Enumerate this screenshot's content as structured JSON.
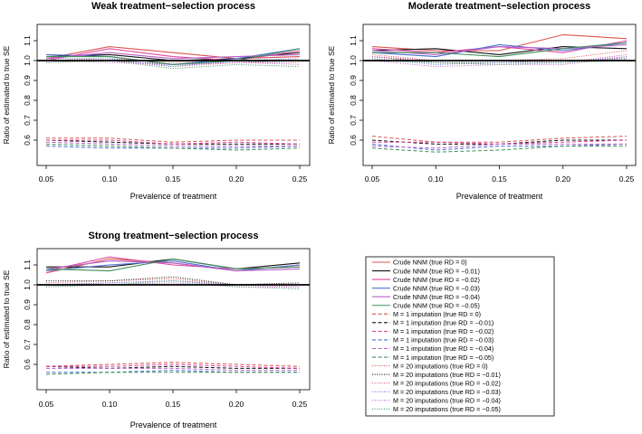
{
  "figure": {
    "legend": [
      {
        "label": "Crude NNM (true RD = 0)",
        "color": "#d9534f",
        "dash": "solid"
      },
      {
        "label": "Crude NNM (true RD = −0.01)",
        "color": "#111111",
        "dash": "solid"
      },
      {
        "label": "Crude NNM (true RD = −0.02)",
        "color": "#e0479e",
        "dash": "solid"
      },
      {
        "label": "Crude NNM (true RD = −0.03)",
        "color": "#4a6fd6",
        "dash": "solid"
      },
      {
        "label": "Crude NNM (true RD = −0.04)",
        "color": "#b660c8",
        "dash": "solid"
      },
      {
        "label": "Crude NNM (true RD = −0.05)",
        "color": "#3f8f5a",
        "dash": "solid"
      },
      {
        "label": "M = 1 imputation (true RD = 0)",
        "color": "#d9534f",
        "dash": "dashed"
      },
      {
        "label": "M = 1 imputation (true RD = −0.01)",
        "color": "#111111",
        "dash": "dashed"
      },
      {
        "label": "M = 1 imputation (true RD = −0.02)",
        "color": "#e0479e",
        "dash": "dashed"
      },
      {
        "label": "M = 1 imputation (true RD = −0.03)",
        "color": "#4a6fd6",
        "dash": "dashed"
      },
      {
        "label": "M = 1 imputation (true RD = −0.04)",
        "color": "#b660c8",
        "dash": "dashed"
      },
      {
        "label": "M = 1 imputation (true RD = −0.05)",
        "color": "#3f8f5a",
        "dash": "dashed"
      },
      {
        "label": "M = 20 imputations (true RD = 0)",
        "color": "#d9534f",
        "dash": "dotted"
      },
      {
        "label": "M = 20 imputations (true RD = −0.01)",
        "color": "#111111",
        "dash": "dotted"
      },
      {
        "label": "M = 20 imputations (true RD = −0.02)",
        "color": "#e0479e",
        "dash": "dotted"
      },
      {
        "label": "M = 20 imputations (true RD = −0.03)",
        "color": "#4a6fd6",
        "dash": "dotted"
      },
      {
        "label": "M = 20 imputations (true RD = −0.04)",
        "color": "#b660c8",
        "dash": "dotted"
      },
      {
        "label": "M = 20 imputations (true RD = −0.05)",
        "color": "#3f8f5a",
        "dash": "dotted"
      }
    ]
  },
  "chart_data": [
    {
      "type": "line",
      "title": "Weak treatment−selection process",
      "xlabel": "Prevalence of treatment",
      "ylabel": "Ratio of estimated to true SE",
      "x": [
        0.05,
        0.1,
        0.15,
        0.2,
        0.25
      ],
      "x_tick_labels": [
        "0.05",
        "0.10",
        "0.15",
        "0.20",
        "0.25"
      ],
      "ylim": [
        0.5,
        1.15
      ],
      "y_ticks": [
        0.6,
        0.7,
        0.8,
        0.9,
        1.0,
        1.1
      ],
      "y_tick_labels": [
        "0.6",
        "0.7",
        "0.8",
        "0.9",
        "1.0",
        "1.1"
      ],
      "reference_line": 1.0,
      "series": [
        {
          "name": "Crude NNM (true RD = 0)",
          "values": [
            1.01,
            1.07,
            1.04,
            1.01,
            1.02
          ]
        },
        {
          "name": "Crude NNM (true RD = −0.01)",
          "values": [
            1.02,
            1.03,
            1.0,
            1.01,
            1.04
          ]
        },
        {
          "name": "Crude NNM (true RD = −0.02)",
          "values": [
            1.0,
            1.06,
            1.02,
            1.0,
            1.05
          ]
        },
        {
          "name": "Crude NNM (true RD = −0.03)",
          "values": [
            1.03,
            1.02,
            0.98,
            1.01,
            1.06
          ]
        },
        {
          "name": "Crude NNM (true RD = −0.04)",
          "values": [
            1.01,
            1.04,
            1.01,
            1.02,
            1.03
          ]
        },
        {
          "name": "Crude NNM (true RD = −0.05)",
          "values": [
            1.02,
            1.02,
            0.98,
            1.0,
            1.06
          ]
        },
        {
          "name": "M = 1 imputation (true RD = 0)",
          "values": [
            0.61,
            0.61,
            0.59,
            0.6,
            0.6
          ]
        },
        {
          "name": "M = 1 imputation (true RD = −0.01)",
          "values": [
            0.6,
            0.59,
            0.58,
            0.58,
            0.58
          ]
        },
        {
          "name": "M = 1 imputation (true RD = −0.02)",
          "values": [
            0.6,
            0.6,
            0.58,
            0.59,
            0.58
          ]
        },
        {
          "name": "M = 1 imputation (true RD = −0.03)",
          "values": [
            0.57,
            0.56,
            0.56,
            0.56,
            0.57
          ]
        },
        {
          "name": "M = 1 imputation (true RD = −0.04)",
          "values": [
            0.59,
            0.58,
            0.57,
            0.57,
            0.57
          ]
        },
        {
          "name": "M = 1 imputation (true RD = −0.05)",
          "values": [
            0.58,
            0.57,
            0.56,
            0.55,
            0.56
          ]
        },
        {
          "name": "M = 20 imputations (true RD = 0)",
          "values": [
            1.0,
            1.01,
            0.99,
            1.0,
            1.0
          ]
        },
        {
          "name": "M = 20 imputations (true RD = −0.01)",
          "values": [
            1.0,
            1.0,
            0.98,
            0.99,
            1.0
          ]
        },
        {
          "name": "M = 20 imputations (true RD = −0.02)",
          "values": [
            0.99,
            1.0,
            0.97,
            0.99,
            0.99
          ]
        },
        {
          "name": "M = 20 imputations (true RD = −0.03)",
          "values": [
            1.01,
            1.01,
            0.97,
            1.0,
            1.01
          ]
        },
        {
          "name": "M = 20 imputations (true RD = −0.04)",
          "values": [
            1.0,
            0.99,
            0.98,
            0.99,
            0.98
          ]
        },
        {
          "name": "M = 20 imputations (true RD = −0.05)",
          "values": [
            0.99,
            1.0,
            0.96,
            0.98,
            0.97
          ]
        }
      ]
    },
    {
      "type": "line",
      "title": "Moderate treatment−selection process",
      "xlabel": "Prevalence of treatment",
      "ylabel": "Ratio of estimated to true SE",
      "x": [
        0.05,
        0.1,
        0.15,
        0.2,
        0.25
      ],
      "x_tick_labels": [
        "0.05",
        "0.10",
        "0.15",
        "0.20",
        "0.25"
      ],
      "ylim": [
        0.5,
        1.15
      ],
      "y_ticks": [
        0.6,
        0.7,
        0.8,
        0.9,
        1.0,
        1.1
      ],
      "y_tick_labels": [
        "0.6",
        "0.7",
        "0.8",
        "0.9",
        "1.0",
        "1.1"
      ],
      "reference_line": 1.0,
      "series": [
        {
          "name": "Crude NNM (true RD = 0)",
          "values": [
            1.07,
            1.05,
            1.05,
            1.13,
            1.11
          ]
        },
        {
          "name": "Crude NNM (true RD = −0.01)",
          "values": [
            1.05,
            1.06,
            1.03,
            1.07,
            1.06
          ]
        },
        {
          "name": "Crude NNM (true RD = −0.02)",
          "values": [
            1.06,
            1.04,
            1.07,
            1.04,
            1.1
          ]
        },
        {
          "name": "Crude NNM (true RD = −0.03)",
          "values": [
            1.04,
            1.02,
            1.08,
            1.05,
            1.09
          ]
        },
        {
          "name": "Crude NNM (true RD = −0.04)",
          "values": [
            1.05,
            1.03,
            1.07,
            1.06,
            1.08
          ]
        },
        {
          "name": "Crude NNM (true RD = −0.05)",
          "values": [
            1.04,
            1.04,
            1.02,
            1.06,
            1.09
          ]
        },
        {
          "name": "M = 1 imputation (true RD = 0)",
          "values": [
            0.62,
            0.59,
            0.59,
            0.61,
            0.62
          ]
        },
        {
          "name": "M = 1 imputation (true RD = −0.01)",
          "values": [
            0.6,
            0.58,
            0.58,
            0.6,
            0.6
          ]
        },
        {
          "name": "M = 1 imputation (true RD = −0.02)",
          "values": [
            0.59,
            0.59,
            0.58,
            0.59,
            0.6
          ]
        },
        {
          "name": "M = 1 imputation (true RD = −0.03)",
          "values": [
            0.58,
            0.55,
            0.57,
            0.57,
            0.58
          ]
        },
        {
          "name": "M = 1 imputation (true RD = −0.04)",
          "values": [
            0.57,
            0.56,
            0.58,
            0.58,
            0.58
          ]
        },
        {
          "name": "M = 1 imputation (true RD = −0.05)",
          "values": [
            0.56,
            0.54,
            0.55,
            0.57,
            0.57
          ]
        },
        {
          "name": "M = 20 imputations (true RD = 0)",
          "values": [
            1.03,
            1.0,
            1.0,
            1.01,
            1.05
          ]
        },
        {
          "name": "M = 20 imputations (true RD = −0.01)",
          "values": [
            1.02,
            0.99,
            0.99,
            1.0,
            1.01
          ]
        },
        {
          "name": "M = 20 imputations (true RD = −0.02)",
          "values": [
            1.02,
            1.0,
            1.0,
            0.99,
            1.03
          ]
        },
        {
          "name": "M = 20 imputations (true RD = −0.03)",
          "values": [
            1.01,
            0.98,
            0.99,
            0.99,
            1.02
          ]
        },
        {
          "name": "M = 20 imputations (true RD = −0.04)",
          "values": [
            1.0,
            0.97,
            0.98,
            0.98,
            1.02
          ]
        },
        {
          "name": "M = 20 imputations (true RD = −0.05)",
          "values": [
            1.0,
            0.99,
            0.98,
            0.99,
            1.0
          ]
        }
      ]
    },
    {
      "type": "line",
      "title": "Strong treatment−selection process",
      "xlabel": "Prevalence of treatment",
      "ylabel": "Ratio of estimated to true SE",
      "x": [
        0.05,
        0.1,
        0.15,
        0.2,
        0.25
      ],
      "x_tick_labels": [
        "0.05",
        "0.10",
        "0.15",
        "0.20",
        "0.25"
      ],
      "ylim": [
        0.5,
        1.15
      ],
      "y_ticks": [
        0.6,
        0.7,
        0.8,
        0.9,
        1.0,
        1.1
      ],
      "y_tick_labels": [
        "0.6",
        "0.7",
        "0.8",
        "0.9",
        "1.0",
        "1.1"
      ],
      "reference_line": 1.0,
      "series": [
        {
          "name": "Crude NNM (true RD = 0)",
          "values": [
            1.06,
            1.13,
            1.11,
            1.07,
            1.1
          ]
        },
        {
          "name": "Crude NNM (true RD = −0.01)",
          "values": [
            1.09,
            1.09,
            1.13,
            1.08,
            1.11
          ]
        },
        {
          "name": "Crude NNM (true RD = −0.02)",
          "values": [
            1.07,
            1.14,
            1.1,
            1.08,
            1.09
          ]
        },
        {
          "name": "Crude NNM (true RD = −0.03)",
          "values": [
            1.07,
            1.1,
            1.12,
            1.07,
            1.1
          ]
        },
        {
          "name": "Crude NNM (true RD = −0.04)",
          "values": [
            1.08,
            1.12,
            1.11,
            1.07,
            1.08
          ]
        },
        {
          "name": "Crude NNM (true RD = −0.05)",
          "values": [
            1.08,
            1.07,
            1.13,
            1.08,
            1.09
          ]
        },
        {
          "name": "M = 1 imputation (true RD = 0)",
          "values": [
            0.59,
            0.6,
            0.61,
            0.6,
            0.59
          ]
        },
        {
          "name": "M = 1 imputation (true RD = −0.01)",
          "values": [
            0.59,
            0.58,
            0.59,
            0.58,
            0.58
          ]
        },
        {
          "name": "M = 1 imputation (true RD = −0.02)",
          "values": [
            0.59,
            0.59,
            0.6,
            0.59,
            0.58
          ]
        },
        {
          "name": "M = 1 imputation (true RD = −0.03)",
          "values": [
            0.56,
            0.56,
            0.57,
            0.56,
            0.56
          ]
        },
        {
          "name": "M = 1 imputation (true RD = −0.04)",
          "values": [
            0.58,
            0.58,
            0.58,
            0.57,
            0.57
          ]
        },
        {
          "name": "M = 1 imputation (true RD = −0.05)",
          "values": [
            0.55,
            0.56,
            0.56,
            0.56,
            0.56
          ]
        },
        {
          "name": "M = 20 imputations (true RD = 0)",
          "values": [
            1.01,
            1.02,
            1.03,
            1.0,
            1.0
          ]
        },
        {
          "name": "M = 20 imputations (true RD = −0.01)",
          "values": [
            1.02,
            1.02,
            1.04,
            1.0,
            1.01
          ]
        },
        {
          "name": "M = 20 imputations (true RD = −0.02)",
          "values": [
            1.0,
            1.01,
            1.02,
            1.0,
            0.99
          ]
        },
        {
          "name": "M = 20 imputations (true RD = −0.03)",
          "values": [
            1.0,
            1.01,
            1.02,
            1.0,
            1.0
          ]
        },
        {
          "name": "M = 20 imputations (true RD = −0.04)",
          "values": [
            0.99,
            1.0,
            1.01,
            0.99,
            0.99
          ]
        },
        {
          "name": "M = 20 imputations (true RD = −0.05)",
          "values": [
            0.99,
            1.0,
            1.02,
            0.99,
            0.98
          ]
        }
      ]
    }
  ]
}
